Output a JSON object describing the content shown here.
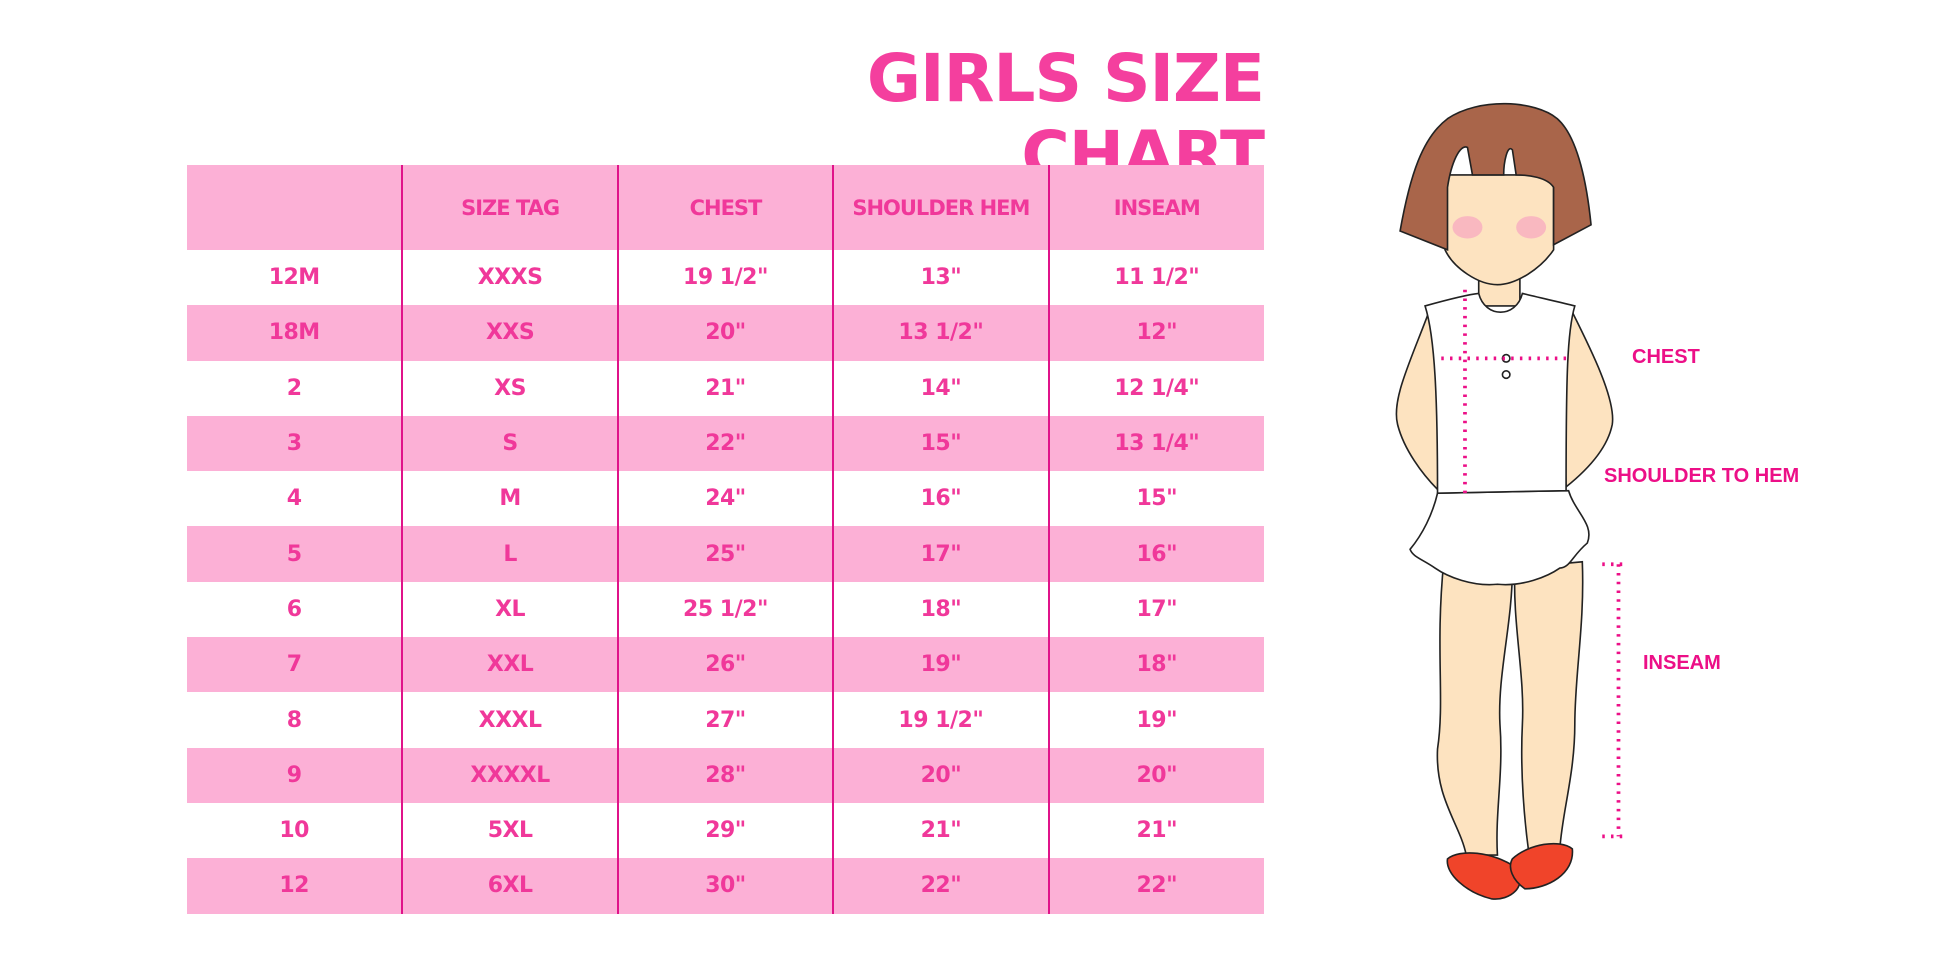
{
  "title": "GIRLS SIZE CHART",
  "table": {
    "headers": [
      "",
      "SIZE TAG",
      "CHEST",
      "SHOULDER HEM",
      "INSEAM"
    ],
    "rows": [
      [
        "12M",
        "XXXS",
        "19 1/2\"",
        "13\"",
        "11 1/2\""
      ],
      [
        "18M",
        "XXS",
        "20\"",
        "13 1/2\"",
        "12\""
      ],
      [
        "2",
        "XS",
        "21\"",
        "14\"",
        "12 1/4\""
      ],
      [
        "3",
        "S",
        "22\"",
        "15\"",
        "13 1/4\""
      ],
      [
        "4",
        "M",
        "24\"",
        "16\"",
        "15\""
      ],
      [
        "5",
        "L",
        "25\"",
        "17\"",
        "16\""
      ],
      [
        "6",
        "XL",
        "25 1/2\"",
        "18\"",
        "17\""
      ],
      [
        "7",
        "XXL",
        "26\"",
        "19\"",
        "18\""
      ],
      [
        "8",
        "XXXL",
        "27\"",
        "19 1/2\"",
        "19\""
      ],
      [
        "9",
        "XXXXL",
        "28\"",
        "20\"",
        "20\""
      ],
      [
        "10",
        "5XL",
        "29\"",
        "21\"",
        "21\""
      ],
      [
        "12",
        "6XL",
        "30\"",
        "22\"",
        "22\""
      ]
    ]
  },
  "figure": {
    "labels": {
      "chest": "CHEST",
      "shoulder_to_hem": "SHOULDER TO HEM",
      "inseam": "INSEAM"
    }
  },
  "colors": {
    "accent": "#f43f9e",
    "row_pink": "#fcb0d6",
    "measure_line": "#ec0f87"
  }
}
